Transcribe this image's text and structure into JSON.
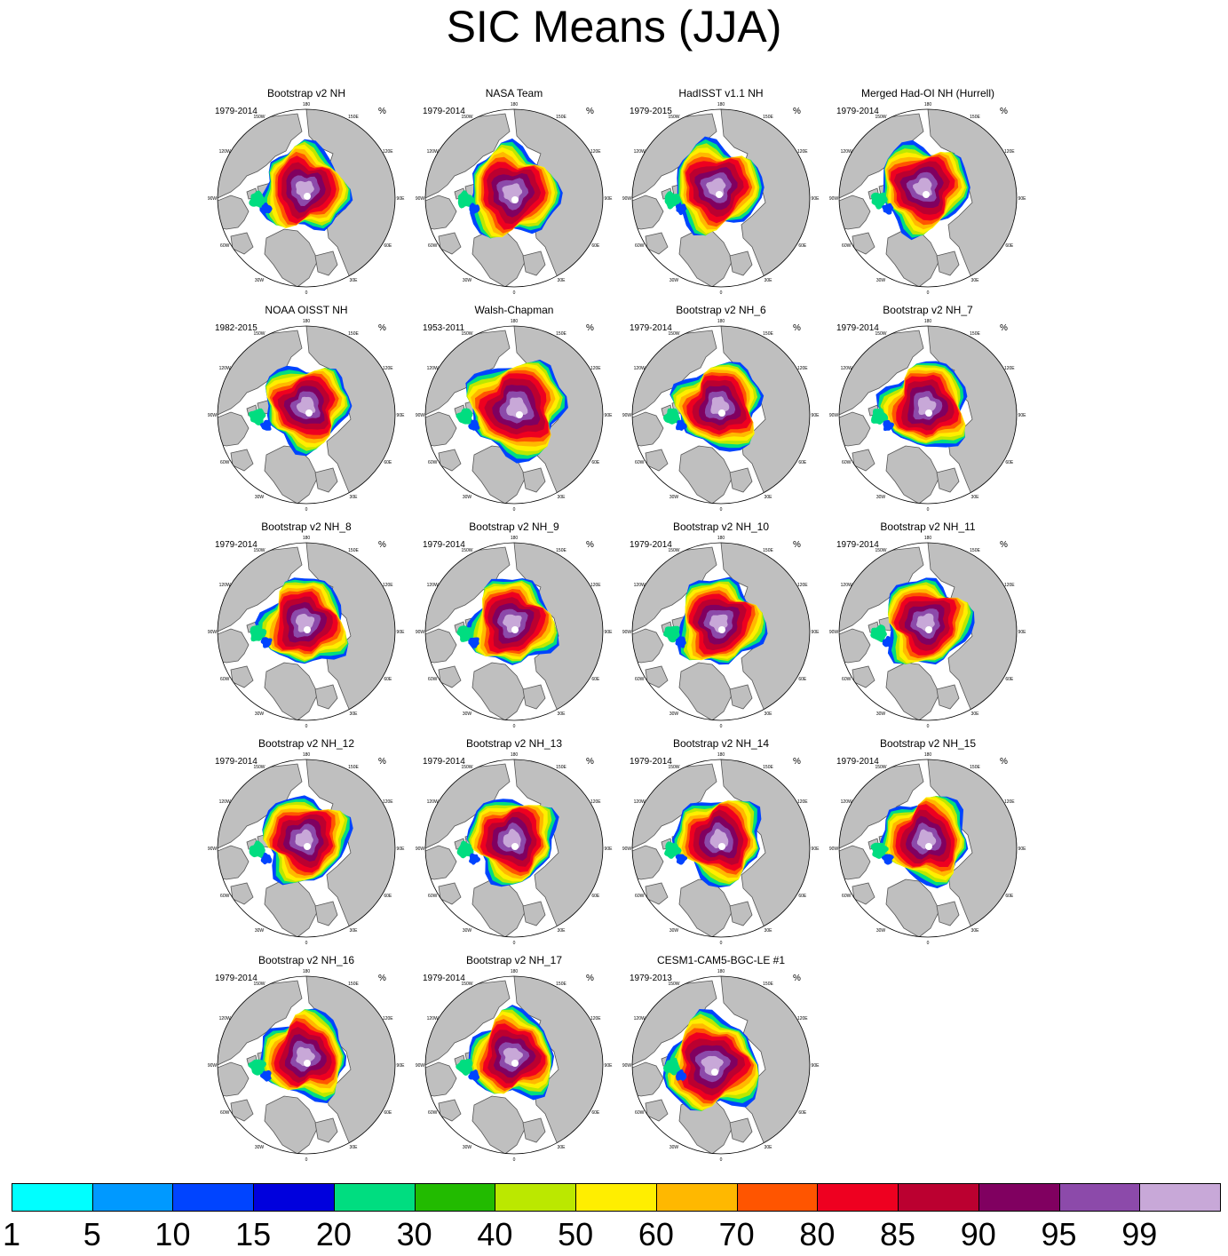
{
  "title": "SIC Means (JJA)",
  "unit_label": "%",
  "longitude_labels": [
    "180",
    "150E",
    "120E",
    "90E",
    "60E",
    "30E",
    "0",
    "30W",
    "60W",
    "90W",
    "120W",
    "150W"
  ],
  "panels": [
    {
      "title": "Bootstrap v2 NH",
      "period": "1979-2014",
      "style": 0
    },
    {
      "title": "NASA Team",
      "period": "1979-2014",
      "style": 1
    },
    {
      "title": "HadISST v1.1 NH",
      "period": "1979-2015",
      "style": 2
    },
    {
      "title": "Merged Had-OI NH (Hurrell)",
      "period": "1979-2014",
      "style": 2
    },
    {
      "title": "NOAA OISST NH",
      "period": "1982-2015",
      "style": 3
    },
    {
      "title": "Walsh-Chapman",
      "period": "1953-2011",
      "style": 4
    },
    {
      "title": "Bootstrap v2 NH_6",
      "period": "1979-2014",
      "style": 0
    },
    {
      "title": "Bootstrap v2 NH_7",
      "period": "1979-2014",
      "style": 0
    },
    {
      "title": "Bootstrap v2 NH_8",
      "period": "1979-2014",
      "style": 0
    },
    {
      "title": "Bootstrap v2 NH_9",
      "period": "1979-2014",
      "style": 0
    },
    {
      "title": "Bootstrap v2 NH_10",
      "period": "1979-2014",
      "style": 0
    },
    {
      "title": "Bootstrap v2 NH_11",
      "period": "1979-2014",
      "style": 0
    },
    {
      "title": "Bootstrap v2 NH_12",
      "period": "1979-2014",
      "style": 0
    },
    {
      "title": "Bootstrap v2 NH_13",
      "period": "1979-2014",
      "style": 0
    },
    {
      "title": "Bootstrap v2 NH_14",
      "period": "1979-2014",
      "style": 0
    },
    {
      "title": "Bootstrap v2 NH_15",
      "period": "1979-2014",
      "style": 0
    },
    {
      "title": "Bootstrap v2 NH_16",
      "period": "1979-2014",
      "style": 0
    },
    {
      "title": "Bootstrap v2 NH_17",
      "period": "1979-2014",
      "style": 0
    },
    {
      "title": "CESM1-CAM5-BGC-LE #1",
      "period": "1979-2013",
      "style": 5
    }
  ],
  "colorbar": {
    "labels": [
      "1",
      "5",
      "10",
      "15",
      "20",
      "30",
      "40",
      "50",
      "60",
      "70",
      "80",
      "85",
      "90",
      "95",
      "99"
    ],
    "colors": [
      "#00ffff",
      "#0099ff",
      "#0044ff",
      "#0000dd",
      "#00dd80",
      "#22bb00",
      "#bbe800",
      "#ffee00",
      "#ffb800",
      "#ff5500",
      "#ee0020",
      "#bb0030",
      "#800060",
      "#8c4aaa",
      "#c8a8d8"
    ]
  },
  "colors": {
    "land": "#bfbfbf",
    "land_outline": "#555555",
    "ocean": "#ffffff"
  }
}
